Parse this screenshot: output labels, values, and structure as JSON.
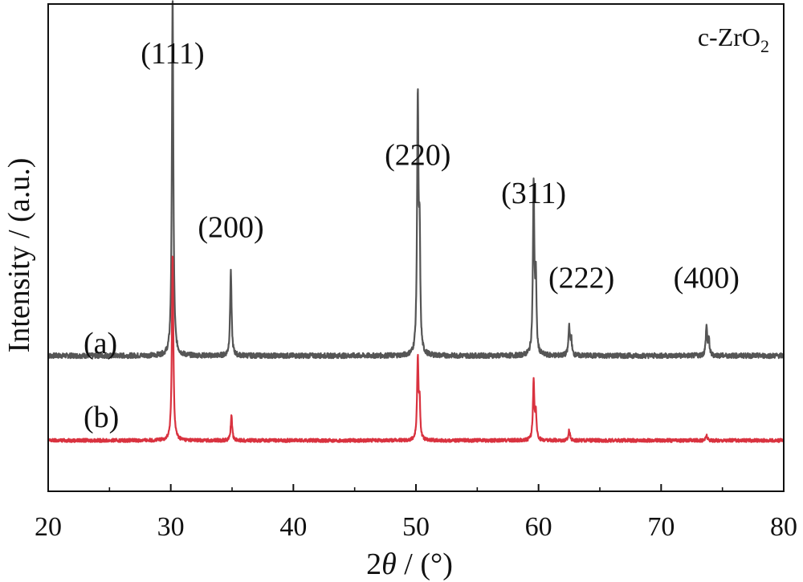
{
  "chart_data": {
    "type": "line",
    "title": "",
    "phase_label": {
      "main": "c-ZrO",
      "sub": "2"
    },
    "xlabel": {
      "prefix": "2",
      "symbol": "θ",
      "suffix": " / (°)"
    },
    "ylabel": "Intensity / (a.u.)",
    "xlim": [
      20,
      80
    ],
    "ylim": [
      0,
      115
    ],
    "x_ticks": [
      20,
      30,
      40,
      50,
      60,
      70,
      80
    ],
    "y_ticks_shown": false,
    "grid": false,
    "legend": "none",
    "series": [
      {
        "label": "(a)",
        "color": "#555555",
        "baseline": 32,
        "noise": 0.6,
        "peaks": [
          {
            "x": 30.15,
            "height": 85,
            "width": 0.07
          },
          {
            "x": 34.9,
            "height": 20,
            "width": 0.07
          },
          {
            "x": 50.15,
            "height": 60,
            "width": 0.07
          },
          {
            "x": 50.3,
            "height": 25,
            "width": 0.06
          },
          {
            "x": 59.6,
            "height": 40,
            "width": 0.07
          },
          {
            "x": 59.78,
            "height": 17,
            "width": 0.06
          },
          {
            "x": 62.5,
            "height": 7,
            "width": 0.07
          },
          {
            "x": 62.67,
            "height": 3.5,
            "width": 0.06
          },
          {
            "x": 73.7,
            "height": 7,
            "width": 0.07
          },
          {
            "x": 73.9,
            "height": 3.5,
            "width": 0.06
          }
        ]
      },
      {
        "label": "(b)",
        "color": "#d9323f",
        "baseline": 12,
        "noise": 0.4,
        "peaks": [
          {
            "x": 30.15,
            "height": 44,
            "width": 0.07
          },
          {
            "x": 34.95,
            "height": 6,
            "width": 0.07
          },
          {
            "x": 50.15,
            "height": 19,
            "width": 0.07
          },
          {
            "x": 50.3,
            "height": 8,
            "width": 0.06
          },
          {
            "x": 59.6,
            "height": 14,
            "width": 0.07
          },
          {
            "x": 59.78,
            "height": 6,
            "width": 0.06
          },
          {
            "x": 62.5,
            "height": 2.5,
            "width": 0.07
          },
          {
            "x": 73.7,
            "height": 1.2,
            "width": 0.07
          }
        ]
      }
    ],
    "annotations": [
      {
        "text": "(111)",
        "x": 30.15,
        "y": 101
      },
      {
        "text": "(200)",
        "x": 34.9,
        "y": 60
      },
      {
        "text": "(220)",
        "x": 50.15,
        "y": 77
      },
      {
        "text": "(311)",
        "x": 59.6,
        "y": 68
      },
      {
        "text": "(222)",
        "x": 63.5,
        "y": 48
      },
      {
        "text": "(400)",
        "x": 73.7,
        "y": 48
      }
    ]
  }
}
